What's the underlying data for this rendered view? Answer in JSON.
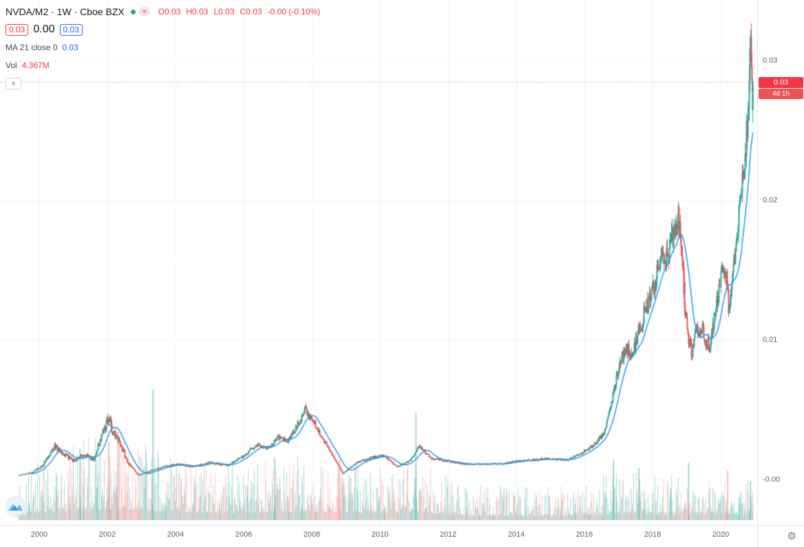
{
  "colors": {
    "up": "#26a69a",
    "down": "#ef5350",
    "vol_up": "rgba(38,166,154,0.38)",
    "vol_down": "rgba(239,83,80,0.30)",
    "vol_up_strong": "rgba(38,166,154,0.55)",
    "vol_down_strong": "rgba(239,83,80,0.50)",
    "ma_line": "#2196f3",
    "accent_red": "#f23645",
    "accent_blue": "#2962ff",
    "grid": "#f0f3fa",
    "axis_border": "#e0e3eb",
    "text_dark": "#131722",
    "text_gray": "#5d606b",
    "status_dot": "#26a69a",
    "price_line": "#f23645"
  },
  "icons": {
    "gear_glyph": "⚙"
  },
  "legend": {
    "title": "NVDA/M2 · 1W · Cboe BZX",
    "status_approx_glyph": "≈",
    "ohlc": [
      {
        "label": "O",
        "value": "0.03"
      },
      {
        "label": "H",
        "value": "0.03"
      },
      {
        "label": "L",
        "value": "0.03"
      },
      {
        "label": "C",
        "value": "0.03"
      }
    ],
    "change": "-0.00 (-0.10%)",
    "pills": {
      "sell": "0.03",
      "spread": "0.00",
      "buy": "0.03"
    },
    "ma_label": "MA 21 close 0",
    "ma_value": "0.03",
    "vol_label": "Vol",
    "vol_value": "4.367M",
    "collapse_glyph": "∧"
  },
  "price_axis": {
    "ticks": [
      {
        "label": "0.03",
        "value": 0.03
      },
      {
        "label": "0.02",
        "value": 0.02
      },
      {
        "label": "0.01",
        "value": 0.01
      },
      {
        "label": "-0.00",
        "value": 0
      }
    ],
    "last_price_badge": "0.03",
    "countdown_badge": "4d 1h"
  },
  "time_axis": {
    "ticks": [
      {
        "label": "2000",
        "year": 2000
      },
      {
        "label": "2002",
        "year": 2002
      },
      {
        "label": "2004",
        "year": 2004
      },
      {
        "label": "2006",
        "year": 2006
      },
      {
        "label": "2008",
        "year": 2008
      },
      {
        "label": "2010",
        "year": 2010
      },
      {
        "label": "2012",
        "year": 2012
      },
      {
        "label": "2014",
        "year": 2014
      },
      {
        "label": "2016",
        "year": 2016
      },
      {
        "label": "2018",
        "year": 2018
      },
      {
        "label": "2020",
        "year": 2020
      }
    ]
  },
  "chart_data": {
    "type": "candlestick",
    "title": "NVDA/M2 weekly candles with MA(21) overlay and volume",
    "symbol": "NVDA/M2",
    "interval": "1W",
    "exchange": "Cboe BZX",
    "legend_position": "top-left",
    "grid": true,
    "x_domain": [
      1998.85,
      2021.07
    ],
    "y_domain": [
      -0.00327,
      0.03436
    ],
    "series_start": 1999.4,
    "series_end": 2020.95,
    "bars_per_year": 52,
    "ma_period": 21,
    "last_close": 0.0285,
    "price_anchors": [
      [
        1999.4,
        0.0003
      ],
      [
        1999.8,
        0.0005
      ],
      [
        2000.1,
        0.001
      ],
      [
        2000.45,
        0.0024
      ],
      [
        2000.7,
        0.0018
      ],
      [
        2001.0,
        0.0013
      ],
      [
        2001.3,
        0.0018
      ],
      [
        2001.6,
        0.0014
      ],
      [
        2002.0,
        0.0043
      ],
      [
        2002.3,
        0.0028
      ],
      [
        2002.6,
        0.0012
      ],
      [
        2002.9,
        0.0003
      ],
      [
        2003.5,
        0.0008
      ],
      [
        2004.0,
        0.0011
      ],
      [
        2004.5,
        0.0009
      ],
      [
        2005.0,
        0.0012
      ],
      [
        2005.5,
        0.001
      ],
      [
        2006.0,
        0.0017
      ],
      [
        2006.4,
        0.0025
      ],
      [
        2006.7,
        0.0022
      ],
      [
        2007.0,
        0.003
      ],
      [
        2007.3,
        0.0027
      ],
      [
        2007.8,
        0.005
      ],
      [
        2008.0,
        0.0043
      ],
      [
        2008.3,
        0.003
      ],
      [
        2008.6,
        0.0018
      ],
      [
        2008.9,
        0.0004
      ],
      [
        2009.3,
        0.0012
      ],
      [
        2009.8,
        0.0016
      ],
      [
        2010.1,
        0.0017
      ],
      [
        2010.5,
        0.0009
      ],
      [
        2010.9,
        0.0014
      ],
      [
        2011.15,
        0.0024
      ],
      [
        2011.5,
        0.0015
      ],
      [
        2012.0,
        0.0013
      ],
      [
        2012.5,
        0.0011
      ],
      [
        2013.0,
        0.0011
      ],
      [
        2013.5,
        0.0011
      ],
      [
        2014.0,
        0.0013
      ],
      [
        2014.5,
        0.0014
      ],
      [
        2015.0,
        0.0015
      ],
      [
        2015.5,
        0.0014
      ],
      [
        2016.0,
        0.002
      ],
      [
        2016.3,
        0.0025
      ],
      [
        2016.6,
        0.0035
      ],
      [
        2016.9,
        0.007
      ],
      [
        2017.2,
        0.0095
      ],
      [
        2017.4,
        0.009
      ],
      [
        2017.7,
        0.0115
      ],
      [
        2018.0,
        0.0135
      ],
      [
        2018.2,
        0.0155
      ],
      [
        2018.5,
        0.0165
      ],
      [
        2018.75,
        0.019
      ],
      [
        2018.9,
        0.014
      ],
      [
        2019.05,
        0.0098
      ],
      [
        2019.15,
        0.009
      ],
      [
        2019.3,
        0.011
      ],
      [
        2019.5,
        0.0104
      ],
      [
        2019.65,
        0.0094
      ],
      [
        2019.85,
        0.012
      ],
      [
        2020.0,
        0.0145
      ],
      [
        2020.15,
        0.015
      ],
      [
        2020.25,
        0.0118
      ],
      [
        2020.35,
        0.0152
      ],
      [
        2020.5,
        0.018
      ],
      [
        2020.6,
        0.0212
      ],
      [
        2020.7,
        0.0228
      ],
      [
        2020.8,
        0.0272
      ],
      [
        2020.87,
        0.0315
      ],
      [
        2020.92,
        0.0268
      ],
      [
        2020.95,
        0.0285
      ]
    ],
    "volatility_anchors": [
      [
        1999.4,
        0.1
      ],
      [
        2003.0,
        0.085
      ],
      [
        2004.0,
        0.06
      ],
      [
        2012.0,
        0.05
      ],
      [
        2016.0,
        0.05
      ],
      [
        2018.8,
        0.055
      ],
      [
        2020.95,
        0.048
      ]
    ],
    "volume_envelope": [
      [
        1999.4,
        0.2
      ],
      [
        2000.0,
        0.32
      ],
      [
        2001.0,
        0.42
      ],
      [
        2002.0,
        0.46
      ],
      [
        2003.0,
        0.42
      ],
      [
        2004.0,
        0.34
      ],
      [
        2005.0,
        0.3
      ],
      [
        2006.0,
        0.3
      ],
      [
        2007.0,
        0.33
      ],
      [
        2008.0,
        0.36
      ],
      [
        2009.0,
        0.31
      ],
      [
        2010.0,
        0.29
      ],
      [
        2011.0,
        0.31
      ],
      [
        2012.0,
        0.25
      ],
      [
        2013.0,
        0.19
      ],
      [
        2014.0,
        0.18
      ],
      [
        2015.0,
        0.18
      ],
      [
        2016.0,
        0.22
      ],
      [
        2017.0,
        0.27
      ],
      [
        2018.0,
        0.26
      ],
      [
        2019.0,
        0.23
      ],
      [
        2020.0,
        0.27
      ],
      [
        2020.95,
        0.22
      ]
    ],
    "volume_spikes": [
      {
        "t": 2001.2,
        "h": 0.55,
        "up": true
      },
      {
        "t": 2002.05,
        "h": 0.6,
        "up": false
      },
      {
        "t": 2002.3,
        "h": 0.68,
        "up": false
      },
      {
        "t": 2003.33,
        "h": 1.0,
        "up": true
      },
      {
        "t": 2006.9,
        "h": 0.48,
        "up": true
      },
      {
        "t": 2008.8,
        "h": 0.46,
        "up": false
      },
      {
        "t": 2011.05,
        "h": 0.82,
        "up": true
      },
      {
        "t": 2016.85,
        "h": 0.46,
        "up": true
      },
      {
        "t": 2017.6,
        "h": 0.4,
        "up": true
      },
      {
        "t": 2019.05,
        "h": 0.44,
        "up": true
      },
      {
        "t": 2020.2,
        "h": 0.38,
        "up": false
      },
      {
        "t": 2020.87,
        "h": 0.3,
        "up": true
      }
    ]
  }
}
